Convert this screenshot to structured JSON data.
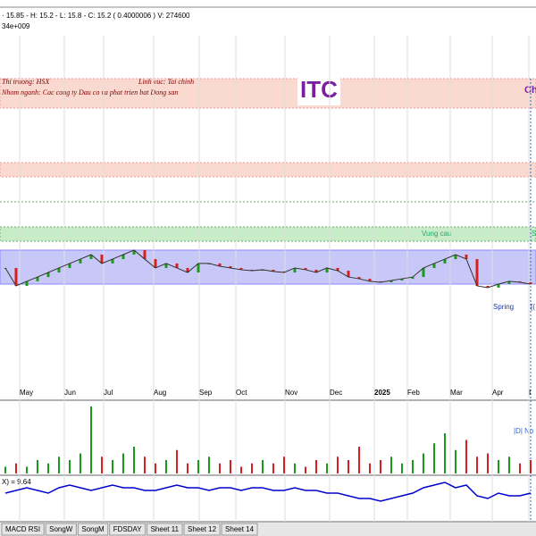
{
  "header": {
    "quote": "· 15.85 - H: 15.2 - L: 15.8 - C: 15.2 ( 0.4000006 ) V: 274600",
    "sub": "34e+009"
  },
  "info": {
    "market": "Thi truong: HSX",
    "field": "Linh vuc: Tai chinh",
    "group": "Nhom nganh: Cac cong ty Dau co va phat trien bat Dong san",
    "symbol": "ITC",
    "right": "Ch"
  },
  "zones": {
    "demand": "Vung cau",
    "spring": "Spring",
    "right1": "S",
    "right2": "[("
  },
  "months": [
    "May",
    "Jun",
    "Jul",
    "Aug",
    "Sep",
    "Oct",
    "Nov",
    "Dec",
    "2025",
    "Feb",
    "Mar",
    "Apr",
    "I"
  ],
  "price": {
    "close": [
      14.82,
      13.91,
      14.14,
      14.36,
      14.59,
      14.82,
      15.05,
      15.27,
      15.5,
      15.05,
      15.27,
      15.5,
      15.73,
      15.27,
      14.82,
      15.05,
      14.82,
      14.59,
      15.05,
      15.05,
      14.91,
      14.82,
      14.73,
      14.68,
      14.73,
      14.64,
      14.59,
      14.82,
      14.73,
      14.59,
      14.82,
      14.68,
      14.36,
      14.27,
      14.14,
      14.09,
      14.18,
      14.27,
      14.36,
      14.82,
      15.05,
      15.27,
      15.5,
      15.27,
      13.91,
      13.82,
      14.0,
      14.14,
      14.09,
      14.0
    ]
  },
  "volume": {
    "label": "|D| No",
    "values": [
      2,
      3,
      2,
      4,
      3,
      5,
      4,
      6,
      20,
      5,
      4,
      6,
      8,
      5,
      3,
      4,
      7,
      3,
      4,
      5,
      3,
      4,
      2,
      3,
      4,
      3,
      5,
      3,
      2,
      4,
      3,
      5,
      4,
      8,
      3,
      4,
      5,
      3,
      4,
      6,
      9,
      12,
      7,
      10,
      5,
      6,
      4,
      5,
      3,
      4
    ]
  },
  "indicator": {
    "label": "X) = 9.64",
    "values": [
      10,
      11,
      12,
      11,
      10,
      12,
      13,
      12,
      11,
      12,
      13,
      12,
      12,
      11,
      11,
      12,
      13,
      12,
      12,
      11,
      12,
      12,
      11,
      12,
      12,
      11,
      11,
      12,
      11,
      11,
      10,
      10,
      9,
      8,
      8,
      7,
      8,
      9,
      10,
      12,
      13,
      14,
      12,
      13,
      9,
      8,
      10,
      9,
      9,
      10
    ]
  },
  "tabs": [
    "MACD RSI",
    "SongW",
    "SongM",
    "FDSDAY",
    "Sheet 11",
    "Sheet 12",
    "Sheet 14"
  ]
}
